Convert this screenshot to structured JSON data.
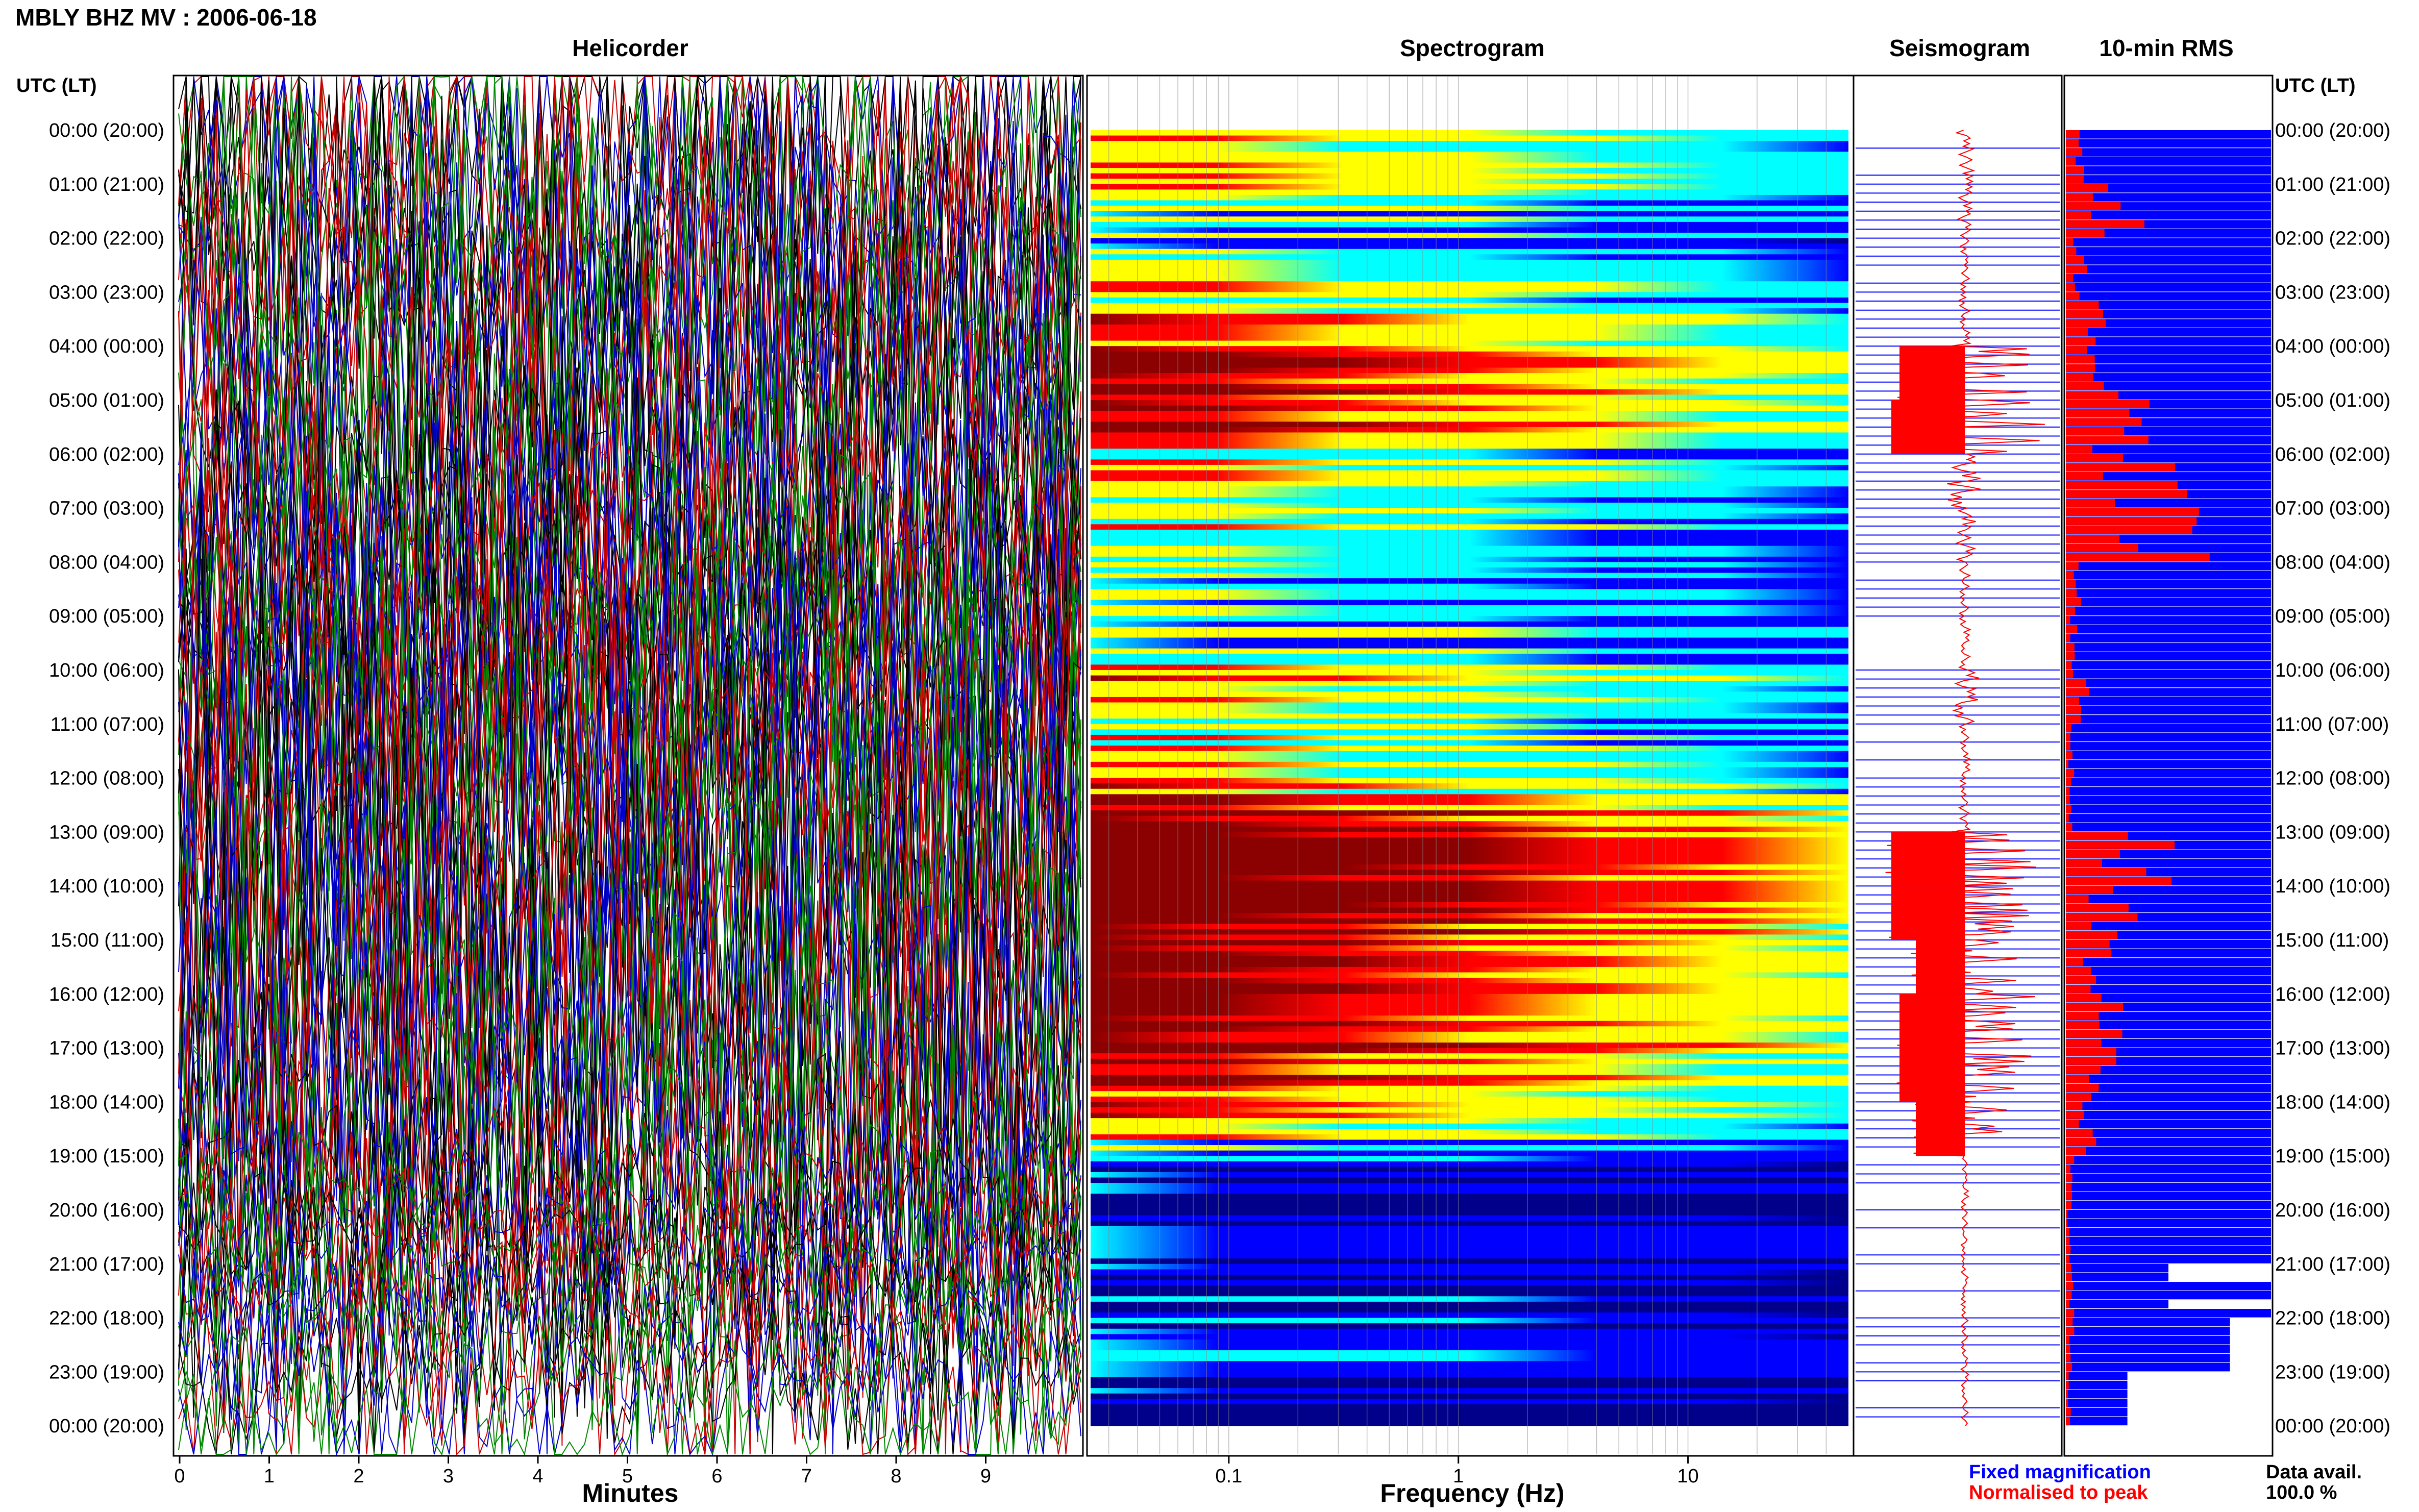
{
  "figure_title": "MBLY BHZ MV : 2006-06-18",
  "axis_header": "UTC (LT)",
  "time_labels": [
    "00:00 (20:00)",
    "01:00 (21:00)",
    "02:00 (22:00)",
    "03:00 (23:00)",
    "04:00 (00:00)",
    "05:00 (01:00)",
    "06:00 (02:00)",
    "07:00 (03:00)",
    "08:00 (04:00)",
    "09:00 (05:00)",
    "10:00 (06:00)",
    "11:00 (07:00)",
    "12:00 (08:00)",
    "13:00 (09:00)",
    "14:00 (10:00)",
    "15:00 (11:00)",
    "16:00 (12:00)",
    "17:00 (13:00)",
    "18:00 (14:00)",
    "19:00 (15:00)",
    "20:00 (16:00)",
    "21:00 (17:00)",
    "22:00 (18:00)",
    "23:00 (19:00)",
    "00:00 (20:00)"
  ],
  "legend": {
    "fixed": "Fixed magnification",
    "normalised": "Normalised to peak",
    "fixed_color": "#0000ff",
    "normalised_color": "#ff0000",
    "data_avail_label": "Data avail.",
    "data_avail_value": "100.0 %"
  },
  "chart_data": [
    {
      "type": "line",
      "title": "Helicorder",
      "xlabel": "Minutes",
      "x_ticks": [
        "0",
        "1",
        "2",
        "3",
        "4",
        "5",
        "6",
        "7",
        "8",
        "9"
      ],
      "xlim": [
        0,
        10
      ],
      "series_colors": [
        "#000000",
        "#cc0000",
        "#0000cc",
        "#008800"
      ]
    },
    {
      "type": "heatmap",
      "title": "Spectrogram",
      "xlabel": "Frequency (Hz)",
      "x_ticks": [
        "0.1",
        "1",
        "10"
      ],
      "x_scale": "log",
      "xlim": [
        0.025,
        50
      ],
      "colormap": [
        "#00008b",
        "#0000ff",
        "#00ffff",
        "#ffff00",
        "#ff0000",
        "#8b0000"
      ],
      "hourly_level": [
        0.45,
        0.55,
        0.35,
        0.5,
        0.75,
        0.85,
        0.5,
        0.55,
        0.35,
        0.35,
        0.6,
        0.45,
        0.55,
        0.95,
        0.95,
        0.85,
        0.8,
        0.8,
        0.75,
        0.25,
        0.15,
        0.15,
        0.2,
        0.15,
        0.1
      ]
    },
    {
      "type": "line",
      "title": "Seismogram",
      "hourly_normalised_amp": [
        0.05,
        0.04,
        0.03,
        0.03,
        0.4,
        0.45,
        0.1,
        0.06,
        0.03,
        0.03,
        0.08,
        0.03,
        0.03,
        0.45,
        0.45,
        0.3,
        0.4,
        0.4,
        0.3,
        0.02,
        0.02,
        0.02,
        0.02,
        0.02,
        0.02
      ]
    },
    {
      "type": "bar",
      "title": "10-min RMS",
      "orientation": "horizontal",
      "hourly_rms": [
        0.12,
        0.55,
        0.15,
        0.25,
        0.45,
        0.55,
        0.75,
        0.85,
        0.1,
        0.08,
        0.15,
        0.05,
        0.05,
        0.65,
        0.45,
        0.3,
        0.35,
        0.35,
        0.2,
        0.08,
        0.03,
        0.05,
        0.05,
        0.03,
        0.03
      ],
      "hourly_coverage": [
        1,
        1,
        1,
        1,
        1,
        1,
        1,
        1,
        1,
        1,
        1,
        1,
        1,
        1,
        1,
        1,
        1,
        1,
        1,
        1,
        1,
        0.5,
        0.8,
        0.3,
        0.85
      ]
    }
  ]
}
